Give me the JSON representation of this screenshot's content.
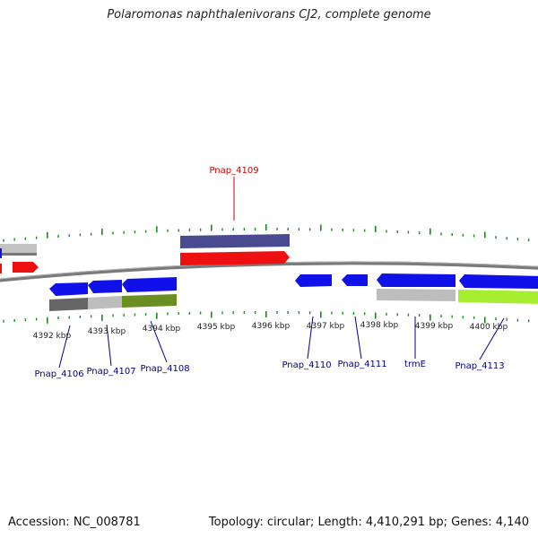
{
  "title": "Polaromonas naphthalenivorans CJ2, complete genome",
  "footer": {
    "accession": "Accession: NC_008781",
    "info": "Topology: circular; Length: 4,410,291 bp; Genes: 4,140"
  },
  "colors": {
    "tick": "#1a8a1a",
    "backbone": "#808080",
    "forward_label": "#cc0000",
    "reverse_label": "#00008b",
    "gene_blue": "#1010e8",
    "gene_red": "#ee1010",
    "gene_navy": "#4a4a90",
    "gene_grey": "#bdbdbd",
    "gene_darkgrey": "#666666",
    "gene_olive": "#6b8e23",
    "gene_lime": "#a6ec2f"
  },
  "ticks": [
    {
      "label": "4392 kbp"
    },
    {
      "label": "4393 kbp"
    },
    {
      "label": "4394 kbp"
    },
    {
      "label": "4395 kbp"
    },
    {
      "label": "4396 kbp"
    },
    {
      "label": "4397 kbp"
    },
    {
      "label": "4398 kbp"
    },
    {
      "label": "4399 kbp"
    },
    {
      "label": "4400 kbp"
    }
  ],
  "gene_labels": [
    {
      "name": "Pnap_4106",
      "strand": "reverse"
    },
    {
      "name": "Pnap_4107",
      "strand": "reverse"
    },
    {
      "name": "Pnap_4108",
      "strand": "reverse"
    },
    {
      "name": "Pnap_4109",
      "strand": "forward"
    },
    {
      "name": "Pnap_4110",
      "strand": "reverse"
    },
    {
      "name": "Pnap_4111",
      "strand": "reverse"
    },
    {
      "name": "trmE",
      "strand": "reverse"
    },
    {
      "name": "Pnap_4113",
      "strand": "reverse"
    }
  ]
}
